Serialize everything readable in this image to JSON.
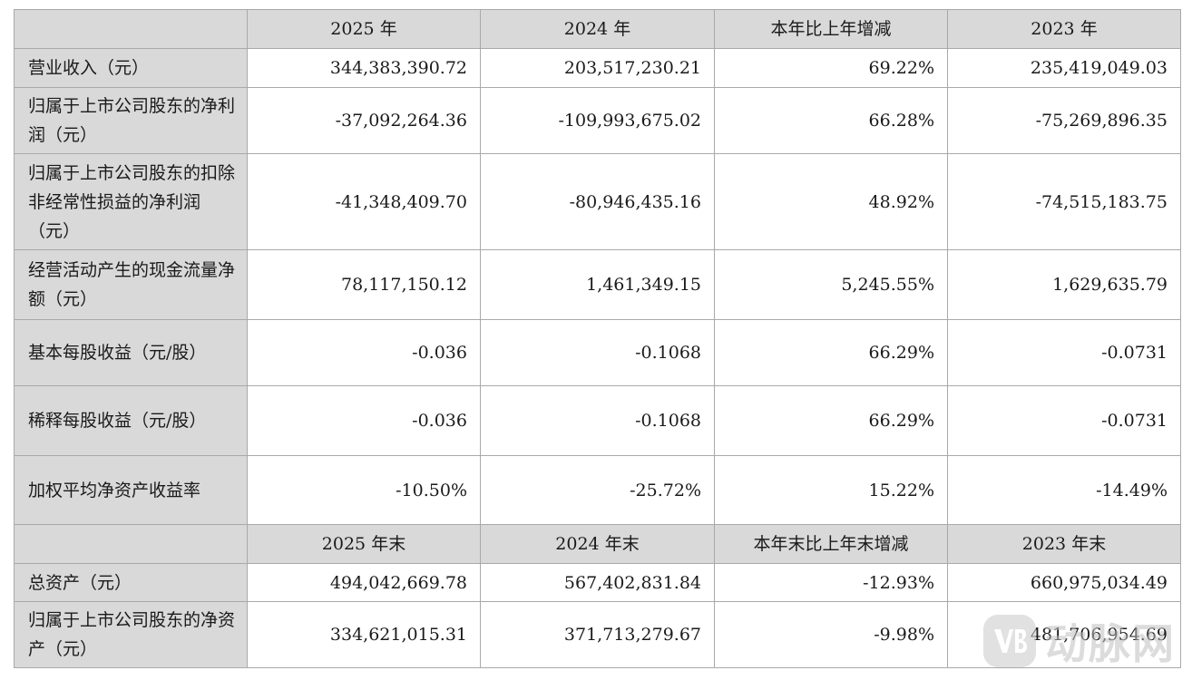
{
  "header_current": [
    "2025 年",
    "2024 年",
    "本年比上年增减",
    "2023 年"
  ],
  "header_balance": [
    "2025 年末",
    "2024 年末",
    "本年末比上年末增减",
    "2023 年末"
  ],
  "rows": [
    {
      "label": "营业收入（元）",
      "values": [
        "344,383,390.72",
        "203,517,230.21",
        "69.22%",
        "235,419,049.03"
      ]
    },
    {
      "label": "归属于上市公司股东的净利润（元）",
      "values": [
        "-37,092,264.36",
        "-109,993,675.02",
        "66.28%",
        "-75,269,896.35"
      ]
    },
    {
      "label": "归属于上市公司股东的扣除非经常性损益的净利润（元）",
      "values": [
        "-41,348,409.70",
        "-80,946,435.16",
        "48.92%",
        "-74,515,183.75"
      ]
    },
    {
      "label": "经营活动产生的现金流量净额（元）",
      "values": [
        "78,117,150.12",
        "1,461,349.15",
        "5,245.55%",
        "1,629,635.79"
      ]
    },
    {
      "label": "基本每股收益（元/股）",
      "values": [
        "-0.036",
        "-0.1068",
        "66.29%",
        "-0.0731"
      ]
    },
    {
      "label": "稀释每股收益（元/股）",
      "values": [
        "-0.036",
        "-0.1068",
        "66.29%",
        "-0.0731"
      ]
    },
    {
      "label": "加权平均净资产收益率",
      "values": [
        "-10.50%",
        "-25.72%",
        "15.22%",
        "-14.49%"
      ]
    }
  ],
  "balance_rows": [
    {
      "label": "总资产（元）",
      "values": [
        "494,042,669.78",
        "567,402,831.84",
        "-12.93%",
        "660,975,034.49"
      ]
    },
    {
      "label": "归属于上市公司股东的净资产（元）",
      "values": [
        "334,621,015.31",
        "371,713,279.67",
        "-9.98%",
        "481,706,954.69"
      ]
    }
  ],
  "watermark": {
    "text": "动脉网",
    "logo_icon": "vb-logo-icon"
  }
}
